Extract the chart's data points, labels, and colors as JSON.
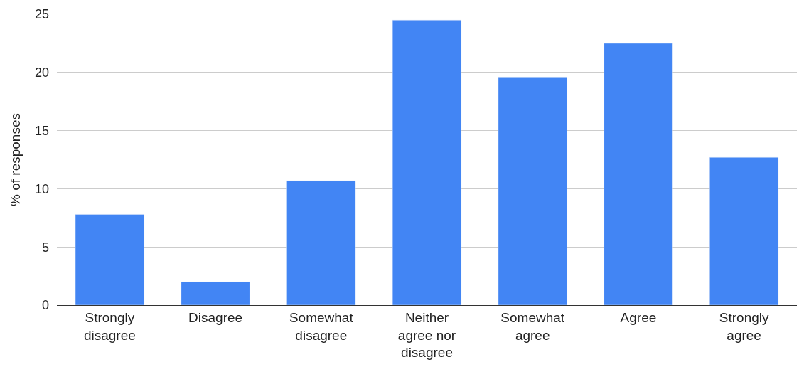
{
  "chart_data": {
    "type": "bar",
    "ylabel": "% of responses",
    "categories": [
      "Strongly disagree",
      "Disagree",
      "Somewhat disagree",
      "Neither agree nor disagree",
      "Somewhat agree",
      "Agree",
      "Strongly agree"
    ],
    "values": [
      7.8,
      2.0,
      10.7,
      24.5,
      19.6,
      22.5,
      12.7
    ],
    "color": "#4285f4",
    "ylim": [
      0,
      25
    ],
    "yticks": [
      0,
      5,
      10,
      15,
      20,
      25
    ],
    "grid": "y"
  }
}
